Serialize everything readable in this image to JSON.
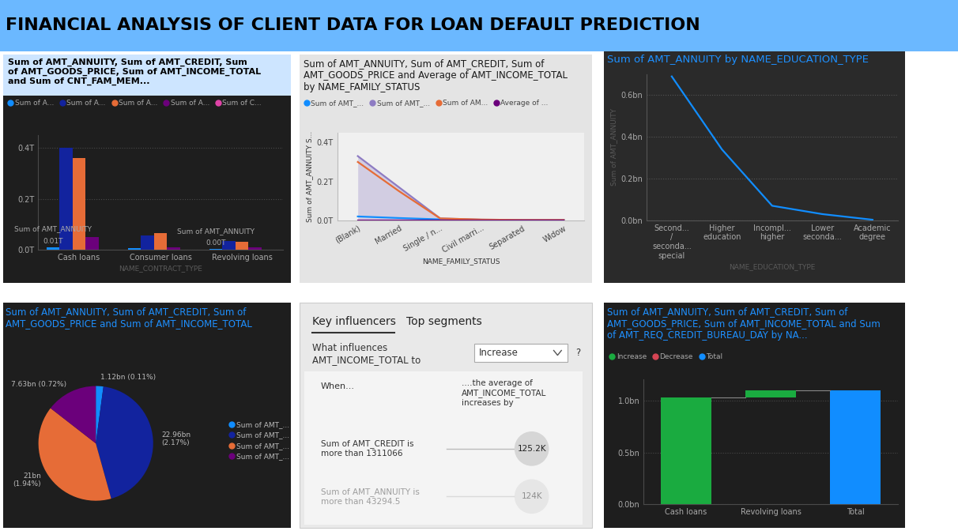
{
  "title": "FINANCIAL ANALYSIS OF CLIENT DATA FOR LOAN DEFAULT PREDICTION",
  "chart_data": [
    {
      "type": "bar",
      "title": "Sum of AMT_ANNUITY, Sum of AMT_CREDIT, Sum of AMT_GOODS_PRICE, Sum of AMT_INCOME_TOTAL and Sum of CNT_FAM_MEM...",
      "x_label": "NAME_CONTRACT_TYPE",
      "categories": [
        "Cash loans",
        "Consumer loans",
        "Revolving loans"
      ],
      "series": [
        {
          "name": "Sum of A...",
          "color": "#118DFF",
          "values": [
            0.01,
            0.005,
            0.002
          ],
          "value_labels": [
            "0.01T",
            null,
            "0.00T"
          ]
        },
        {
          "name": "Sum of A...",
          "color": "#12239E",
          "values": [
            0.4,
            0.055,
            0.035
          ]
        },
        {
          "name": "Sum of A...",
          "color": "#E66C37",
          "values": [
            0.36,
            0.065,
            0.03
          ]
        },
        {
          "name": "Sum of A...",
          "color": "#6B007B",
          "values": [
            0.05,
            0.01,
            0.008
          ]
        },
        {
          "name": "Sum of C...",
          "color": "#E044A7",
          "values": [
            4e-07,
            4e-08,
            2e-08
          ]
        }
      ],
      "annotations": [
        {
          "text": "Sum of AMT_ANNUITY",
          "category": "Cash loans"
        },
        {
          "text": "Sum of AMT_ANNUITY",
          "category": "Revolving loans"
        }
      ],
      "ylim": [
        0,
        0.45
      ],
      "yticks": [
        {
          "value": 0,
          "label": "0.0T"
        },
        {
          "value": 0.2,
          "label": "0.2T"
        },
        {
          "value": 0.4,
          "label": "0.4T"
        }
      ],
      "grid": true,
      "legend": "upper left",
      "data_labels": true
    },
    {
      "type": "line",
      "title": "Sum of AMT_ANNUITY, Sum of AMT_CREDIT, Sum of AMT_GOODS_PRICE and Average of AMT_INCOME_TOTAL by NAME_FAMILY_STATUS",
      "x_label": "NAME_FAMILY_STATUS",
      "y_label": "Sum of AMT_ANNUITY S...",
      "categories": [
        "(Blank)",
        "Married",
        "Single / n...",
        "Civil marri...",
        "Separated",
        "Widow"
      ],
      "series": [
        {
          "name": "Sum of AMT_...",
          "color": "#118DFF",
          "values": [
            0.02,
            0.012,
            0.005,
            0.002,
            0.001,
            0.001
          ]
        },
        {
          "name": "Sum of AMT_...",
          "color": "#8E7CC3",
          "type": "area",
          "values": [
            0.33,
            0.17,
            0.01,
            0.004,
            0.002,
            0.002
          ]
        },
        {
          "name": "Sum of AM...",
          "color": "#E66C37",
          "values": [
            0.3,
            0.15,
            0.01,
            0.004,
            0.002,
            0.002
          ]
        },
        {
          "name": "Average of ...",
          "color": "#6B007B",
          "values": [
            2e-07,
            2e-07,
            2e-07,
            2e-07,
            2e-07,
            2e-07
          ]
        }
      ],
      "ylim": [
        0,
        0.45
      ],
      "yticks": [
        {
          "value": 0,
          "label": "0.0T"
        },
        {
          "value": 0.2,
          "label": "0.2T"
        },
        {
          "value": 0.4,
          "label": "0.4T"
        }
      ],
      "legend": "upper left"
    },
    {
      "type": "line",
      "title": "Sum of AMT_ANNUITY by NAME_EDUCATION_TYPE",
      "x_label": "NAME_EDUCATION_TYPE",
      "y_label": "Sum of AMT_ANNUITY",
      "categories": [
        "Second...\n/\nseconda...\nspecial",
        "Higher\neducation",
        "Incompl...\nhigher",
        "Lower\nseconda...",
        "Academic\ndegree"
      ],
      "series": [
        {
          "name": "Sum of AMT_ANNUITY",
          "color": "#118DFF",
          "values": [
            0.69,
            0.34,
            0.07,
            0.03,
            0.003
          ]
        }
      ],
      "ylim": [
        0,
        0.7
      ],
      "yticks": [
        {
          "value": 0,
          "label": "0.0bn"
        },
        {
          "value": 0.2,
          "label": "0.2bn"
        },
        {
          "value": 0.4,
          "label": "0.4bn"
        },
        {
          "value": 0.6,
          "label": "0.6bn"
        }
      ],
      "grid": true
    },
    {
      "type": "pie",
      "title": "Sum of AMT_ANNUITY, Sum of AMT_CREDIT, Sum of AMT_GOODS_PRICE and Sum of AMT_INCOME_TOTAL",
      "categories": [
        "Sum of AMT_...",
        "Sum of AMT_...",
        "Sum of AMT_...",
        "Sum of AMT_..."
      ],
      "values": [
        1.12,
        22.96,
        21,
        7.63
      ],
      "value_labels": [
        "1.12bn (0.11%)",
        "22.96bn\n(2.17%)",
        "21bn\n(1.94%)",
        "7.63bn (0.72%)"
      ],
      "colors": [
        "#118DFF",
        "#12239E",
        "#E66C37",
        "#6B007B"
      ],
      "legend": "center right",
      "data_labels": true
    },
    {
      "type": "waterfall",
      "title": "Sum of AMT_ANNUITY, Sum of AMT_CREDIT, Sum of AMT_GOODS_PRICE, Sum of AMT_INCOME_TOTAL and Sum of AMT_REQ_CREDIT_BUREAU_DAY by NA...",
      "categories": [
        "Cash loans",
        "Revolving loans",
        "Total"
      ],
      "values": [
        1.03,
        0.07,
        1.1
      ],
      "kinds": [
        "Increase",
        "Increase",
        "Total"
      ],
      "series": [
        {
          "name": "Increase",
          "color": "#1AAB40"
        },
        {
          "name": "Decrease",
          "color": "#D64554"
        },
        {
          "name": "Total",
          "color": "#118DFF"
        }
      ],
      "ylim": [
        0,
        1.2
      ],
      "yticks": [
        {
          "value": 0,
          "label": "0.0bn"
        },
        {
          "value": 0.5,
          "label": "0.5bn"
        },
        {
          "value": 1.0,
          "label": "1.0bn"
        }
      ],
      "grid": true,
      "legend": "upper left"
    }
  ],
  "key_influencers": {
    "tabs": [
      "Key influencers",
      "Top segments"
    ],
    "question": "What influences AMT_INCOME_TOTAL to",
    "dropdown": "Increase",
    "help": "?",
    "when": "When...",
    "then": "....the average of AMT_INCOME_TOTAL increases by",
    "rows": [
      {
        "condition": "Sum of AMT_CREDIT is more than 1311066",
        "value": "125.2K"
      },
      {
        "condition": "Sum of AMT_ANNUITY is more than 43294.5",
        "value": "124K"
      }
    ]
  }
}
